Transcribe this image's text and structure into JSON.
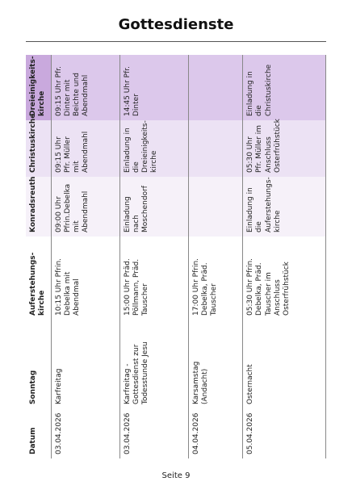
{
  "header": {
    "title": "Gottesdienste"
  },
  "table": {
    "columns": [
      "Datum",
      "Sonntag",
      "Auferstehungs-kirche",
      "Konradsreuth",
      "Christuskirche",
      "Dreieinigkeits-kirche"
    ],
    "rows": [
      [
        "03.04.2026",
        "Karfreitag",
        "10:15 Uhr Pfrin. Debelka mit Abendmal",
        "09:00 Uhr Pfrin.Debelka mit Abendmahl",
        "09:15 Uhr Pfr. Müller mit Abendmahl",
        "09:15 Uhr Pfr. Dinter mit Beichte und Abendmahl"
      ],
      [
        "03.04.2026",
        "Karfreitag - Gottesdienst zur Todesstunde Jesu",
        "15:00 Uhr Präd. Pöllmann, Präd. Tauscher",
        "Einladung nach Moschendorf",
        "Einladung in die Dreieinigkeits-kirche",
        "14:45 Uhr Pfr. Dinter"
      ],
      [
        "04.04.2026",
        "Karsamstag (Andacht)",
        "17:00 Uhr Pfrin. Debelka, Präd. Tauscher",
        null,
        null,
        null
      ],
      [
        "05.04.2026",
        "Osternacht",
        "05:30 Uhr Pfrin. Debelka, Präd. Tauscher im Anschluss Osterfrühstück",
        "Einladung in die Auferstehungs-kirche",
        "05:30 Uhr Pfr. Müller im Anschluss Osterfrühstück",
        "Einladung in die Christuskirche"
      ]
    ]
  },
  "footer": {
    "page": "Seite 9"
  }
}
